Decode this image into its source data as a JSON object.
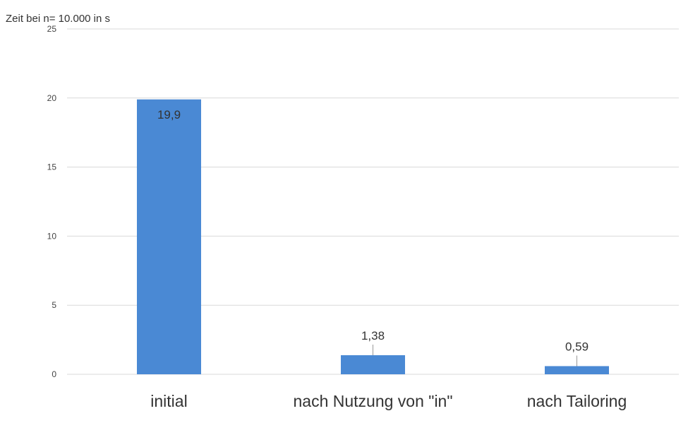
{
  "chart_data": {
    "type": "bar",
    "title": "",
    "xlabel": "",
    "ylabel": "Zeit bei n= 10.000  in s",
    "categories": [
      "initial",
      "nach Nutzung von \"in\"",
      "nach Tailoring"
    ],
    "values": [
      19.9,
      1.38,
      0.59
    ],
    "value_labels": [
      "19,9",
      "1,38",
      "0,59"
    ],
    "ylim": [
      0,
      25
    ],
    "yticks": [
      0,
      5,
      10,
      15,
      20,
      25
    ],
    "grid": true,
    "legend": "none",
    "bar_color": "#4a89d4",
    "grid_color": "#d9d9d9"
  }
}
